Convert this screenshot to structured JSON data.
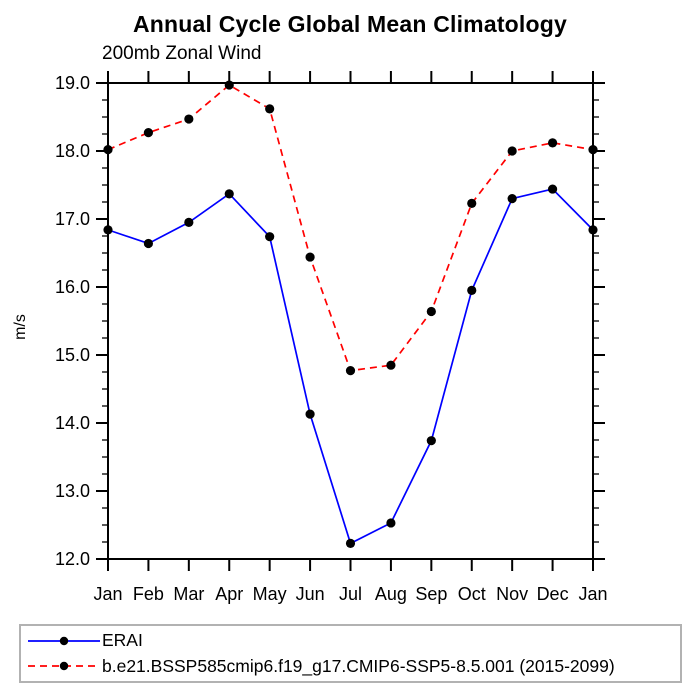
{
  "chart_data": {
    "type": "line",
    "title": "Annual Cycle Global Mean Climatology",
    "subtitle": "200mb Zonal Wind",
    "ylabel": "m/s",
    "xlabel": "",
    "x_tick_labels": [
      "Jan",
      "Feb",
      "Mar",
      "Apr",
      "May",
      "Jun",
      "Jul",
      "Aug",
      "Sep",
      "Oct",
      "Nov",
      "Dec",
      "Jan"
    ],
    "y_tick_labels": [
      "12.0",
      "13.0",
      "14.0",
      "15.0",
      "16.0",
      "17.0",
      "18.0",
      "19.0"
    ],
    "ylim": [
      12.0,
      19.0
    ],
    "y_major_step": 1.0,
    "y_minor_step": 0.25,
    "grid": false,
    "legend_position": "bottom-left",
    "marker_color": "#000000",
    "axis_color": "#000000",
    "series": [
      {
        "name": "ERAI",
        "color": "#0000ff",
        "dash": "solid",
        "values": [
          16.84,
          16.64,
          16.95,
          17.37,
          16.74,
          14.13,
          12.23,
          12.53,
          13.74,
          15.95,
          17.3,
          17.44,
          16.84
        ]
      },
      {
        "name": "b.e21.BSSP585cmip6.f19_g17.CMIP6-SSP5-8.5.001 (2015-2099)",
        "color": "#ff0000",
        "dash": "dashed",
        "values": [
          18.02,
          18.27,
          18.47,
          18.97,
          18.62,
          16.44,
          14.77,
          14.85,
          15.64,
          17.23,
          18.0,
          18.12,
          18.02
        ]
      }
    ]
  }
}
